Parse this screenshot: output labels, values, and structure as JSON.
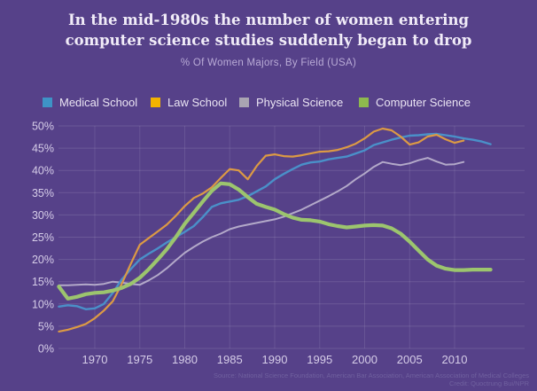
{
  "header": {
    "title_line1": "In the mid-1980s the number of women entering",
    "title_line2": "computer science studies suddenly began to drop",
    "subtitle": "% Of Women Majors, By Field (USA)"
  },
  "legend": {
    "items": [
      {
        "label": "Medical School",
        "swatch_color": "#3E93C6"
      },
      {
        "label": "Law School",
        "swatch_color": "#F2B201"
      },
      {
        "label": "Physical Science",
        "swatch_color": "#A9A5B2"
      },
      {
        "label": "Computer Science",
        "swatch_color": "#8DB94E"
      }
    ]
  },
  "footer": {
    "source_line": "Source: National Science Foundation, American Bar Association, American Association of Medical Colleges",
    "credit_line": "Credit: Quoctrung Bui/NPR"
  },
  "colors": {
    "background": "#564189",
    "title_text": "#F1ECF8",
    "subtitle_text": "#B9ABD6",
    "tick_text": "#D6CDE8",
    "grid_h": "rgba(255,255,255,0.13)",
    "grid_v": "rgba(255,255,255,0.10)",
    "source_text": "#70619F"
  },
  "chart_data": {
    "type": "line",
    "title": "In the mid-1980s the number of women entering computer science studies suddenly began to drop",
    "subtitle": "% Of Women Majors, By Field (USA)",
    "xlabel": "",
    "ylabel": "% of women majors",
    "ylim": [
      0,
      50
    ],
    "xlim": [
      1966,
      2015
    ],
    "grid": true,
    "legend_position": "top",
    "y_ticks": [
      "0%",
      "5%",
      "10%",
      "15%",
      "20%",
      "25%",
      "30%",
      "35%",
      "40%",
      "45%",
      "50%"
    ],
    "y_tick_values": [
      0,
      5,
      10,
      15,
      20,
      25,
      30,
      35,
      40,
      45,
      50
    ],
    "x_ticks": [
      "1970",
      "1975",
      "1980",
      "1985",
      "1990",
      "1995",
      "2000",
      "2005",
      "2010"
    ],
    "x_tick_values": [
      1970,
      1975,
      1980,
      1985,
      1990,
      1995,
      2000,
      2005,
      2010
    ],
    "series": [
      {
        "name": "Physical Science",
        "color": "#B3A9C9",
        "line_width": 2.0,
        "start_year": 1966,
        "values": [
          14.2,
          14.2,
          14.3,
          14.4,
          14.3,
          14.5,
          15.0,
          14.8,
          14.5,
          14.3,
          15.3,
          16.5,
          18.0,
          19.8,
          21.5,
          22.8,
          24.0,
          25.0,
          25.8,
          26.8,
          27.4,
          27.8,
          28.2,
          28.6,
          29.0,
          29.6,
          30.4,
          31.2,
          32.2,
          33.2,
          34.2,
          35.3,
          36.5,
          38.0,
          39.3,
          40.8,
          41.9,
          41.5,
          41.2,
          41.6,
          42.3,
          42.8,
          42.0,
          41.3,
          41.4,
          41.9
        ]
      },
      {
        "name": "Medical School",
        "color": "#4A90C9",
        "line_width": 2.4,
        "start_year": 1966,
        "values": [
          9.4,
          9.7,
          9.5,
          8.8,
          9.0,
          10.0,
          12.5,
          15.5,
          17.8,
          20.0,
          21.3,
          22.5,
          23.8,
          25.0,
          26.2,
          27.5,
          29.5,
          31.8,
          32.6,
          33.0,
          33.4,
          34.2,
          35.3,
          36.4,
          38.0,
          39.2,
          40.3,
          41.3,
          41.8,
          42.0,
          42.5,
          42.8,
          43.1,
          43.8,
          44.5,
          45.7,
          46.3,
          46.9,
          47.4,
          47.8,
          47.9,
          48.1,
          48.2,
          47.9,
          47.6,
          47.2,
          46.9,
          46.5,
          45.9
        ]
      },
      {
        "name": "Law School",
        "color": "#DC9A44",
        "line_width": 2.2,
        "start_year": 1966,
        "values": [
          3.8,
          4.2,
          4.8,
          5.5,
          6.8,
          8.5,
          10.6,
          14.5,
          19.0,
          23.3,
          24.8,
          26.3,
          27.8,
          29.8,
          32.0,
          33.8,
          34.8,
          36.2,
          38.3,
          40.3,
          40.0,
          38.0,
          41.0,
          43.3,
          43.6,
          43.2,
          43.1,
          43.4,
          43.8,
          44.2,
          44.3,
          44.6,
          45.2,
          46.0,
          47.2,
          48.7,
          49.4,
          49.0,
          47.6,
          45.8,
          46.3,
          47.6,
          48.0,
          47.0,
          46.2,
          46.7
        ]
      },
      {
        "name": "Computer Science",
        "color": "#9CC56E",
        "line_width": 4.2,
        "start_year": 1966,
        "values": [
          13.9,
          11.2,
          11.6,
          12.2,
          12.5,
          12.6,
          13.0,
          13.6,
          14.5,
          15.9,
          17.8,
          20.0,
          22.3,
          25.0,
          28.0,
          30.5,
          33.0,
          35.4,
          37.1,
          36.9,
          35.7,
          34.0,
          32.5,
          31.8,
          31.2,
          30.2,
          29.4,
          28.9,
          28.8,
          28.5,
          27.9,
          27.5,
          27.2,
          27.4,
          27.6,
          27.7,
          27.6,
          27.0,
          25.8,
          24.0,
          22.0,
          20.0,
          18.6,
          17.9,
          17.6,
          17.6,
          17.7,
          17.7,
          17.7
        ]
      }
    ]
  }
}
